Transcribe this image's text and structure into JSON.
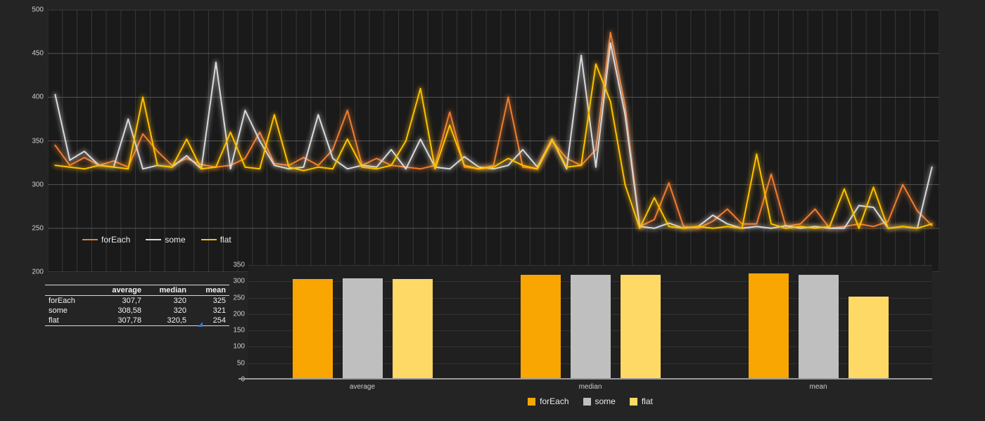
{
  "colors": {
    "page_bg": "#242424",
    "line_plot_bg": "#1a1a1a",
    "bar_plot_bg": "#202020",
    "grid_vertical": "#383838",
    "grid_horizontal": "#545454",
    "axis_text": "#cdcdcd",
    "series": {
      "forEach": {
        "line": "#ED7D31",
        "bar": "#F9A602"
      },
      "some": {
        "line": "#D9D9D9",
        "bar": "#BFBFBF"
      },
      "flat": {
        "line": "#FFC000",
        "bar": "#FFD966"
      }
    },
    "table_corner_marker": "#4472C4"
  },
  "line_chart": {
    "legend": [
      "forEach",
      "some",
      "flat"
    ]
  },
  "bar_chart": {
    "legend": [
      "forEach",
      "some",
      "flat"
    ]
  },
  "chart_data": [
    {
      "type": "line",
      "title": "",
      "xlabel": "",
      "ylabel": "",
      "ylim": [
        200,
        500
      ],
      "y_ticks": [
        500,
        450,
        400,
        350,
        300,
        250,
        200
      ],
      "grid": true,
      "legend_position": "inside-bottom-left",
      "legend": [
        "forEach",
        "some",
        "flat"
      ],
      "series": [
        {
          "name": "forEach",
          "values": [
            345,
            322,
            331,
            322,
            327,
            320,
            358,
            338,
            322,
            330,
            323,
            320,
            322,
            330,
            360,
            324,
            322,
            331,
            322,
            340,
            385,
            322,
            330,
            322,
            320,
            318,
            322,
            383,
            320,
            318,
            322,
            400,
            320,
            318,
            350,
            330,
            322,
            340,
            474,
            390,
            252,
            260,
            302,
            252,
            250,
            258,
            272,
            255,
            255,
            312,
            252,
            255,
            272,
            250,
            252,
            255,
            252,
            258,
            300,
            270,
            253
          ]
        },
        {
          "name": "some",
          "values": [
            403,
            328,
            338,
            322,
            320,
            375,
            318,
            322,
            320,
            333,
            318,
            440,
            318,
            385,
            350,
            322,
            318,
            320,
            380,
            330,
            318,
            322,
            320,
            340,
            318,
            352,
            320,
            318,
            332,
            320,
            318,
            322,
            340,
            320,
            352,
            318,
            448,
            320,
            462,
            380,
            252,
            250,
            256,
            250,
            252,
            265,
            255,
            250,
            252,
            250,
            253,
            250,
            252,
            250,
            250,
            276,
            274,
            250,
            252,
            250,
            320
          ]
        },
        {
          "name": "flat",
          "values": [
            322,
            320,
            318,
            322,
            320,
            318,
            400,
            322,
            320,
            352,
            318,
            320,
            360,
            320,
            318,
            380,
            320,
            316,
            320,
            318,
            352,
            320,
            318,
            322,
            350,
            410,
            318,
            368,
            322,
            318,
            320,
            330,
            322,
            318,
            352,
            320,
            322,
            438,
            395,
            300,
            250,
            285,
            252,
            250,
            252,
            250,
            252,
            250,
            335,
            255,
            250,
            252,
            250,
            252,
            295,
            250,
            297,
            250,
            252,
            250,
            255
          ]
        }
      ]
    },
    {
      "type": "bar",
      "title": "",
      "xlabel": "",
      "ylabel": "",
      "ylim": [
        0,
        350
      ],
      "y_ticks": [
        350,
        300,
        250,
        200,
        150,
        100,
        50,
        0
      ],
      "grid": true,
      "legend_position": "bottom",
      "categories": [
        "average",
        "median",
        "mean"
      ],
      "series": [
        {
          "name": "forEach",
          "values": [
            307.7,
            320,
            325
          ]
        },
        {
          "name": "some",
          "values": [
            308.58,
            320,
            321
          ]
        },
        {
          "name": "flat",
          "values": [
            307.78,
            320.5,
            254
          ]
        }
      ]
    },
    {
      "type": "table",
      "columns": [
        "",
        "average",
        "median",
        "mean"
      ],
      "rows": [
        {
          "label": "forEach",
          "values": [
            "307,7",
            "320",
            "325"
          ]
        },
        {
          "label": "some",
          "values": [
            "308,58",
            "320",
            "321"
          ]
        },
        {
          "label": "flat",
          "values": [
            "307,78",
            "320,5",
            "254"
          ]
        }
      ]
    }
  ]
}
